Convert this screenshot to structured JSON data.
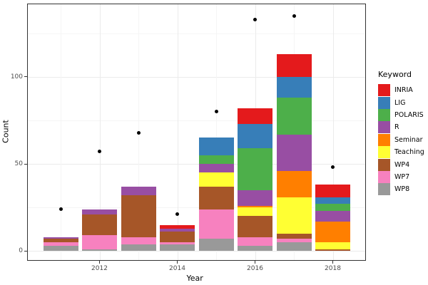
{
  "chart_data": {
    "type": "bar",
    "stacked": true,
    "title": "",
    "xlabel": "Year",
    "ylabel": "Count",
    "grid": true,
    "legend_title": "Keyword",
    "legend_position": "right",
    "x_years": [
      2011,
      2012,
      2013,
      2014,
      2015,
      2016,
      2017,
      2018
    ],
    "x_tick_labels": [
      "2012",
      "2014",
      "2016",
      "2018"
    ],
    "x_tick_years": [
      2012,
      2014,
      2016,
      2018
    ],
    "x_minor_years": [
      2011,
      2013,
      2015,
      2017
    ],
    "y_tick_labels": [
      "0",
      "50",
      "100"
    ],
    "y_ticks": [
      0,
      50,
      100
    ],
    "y_minor_ticks": [
      25,
      75,
      125
    ],
    "ylim": [
      -5,
      142
    ],
    "stack_order_bottom_to_top": [
      "WP8",
      "WP7",
      "WP4",
      "Teaching",
      "Seminar",
      "R",
      "POLARIS",
      "LIG",
      "INRIA"
    ],
    "series": [
      {
        "name": "INRIA",
        "color": "#E41A1C",
        "values": [
          0,
          0,
          0,
          2,
          0,
          9,
          13,
          7
        ]
      },
      {
        "name": "LIG",
        "color": "#377EB8",
        "values": [
          0,
          0,
          0,
          0,
          10,
          14,
          12,
          4
        ]
      },
      {
        "name": "POLARIS",
        "color": "#4DAF4A",
        "values": [
          0,
          0,
          0,
          0,
          5,
          24,
          21,
          4
        ]
      },
      {
        "name": "R",
        "color": "#984EA3",
        "values": [
          1,
          3,
          5,
          2,
          5,
          9,
          21,
          6
        ]
      },
      {
        "name": "Seminar",
        "color": "#FF7F00",
        "values": [
          0,
          0,
          0,
          0,
          0,
          1,
          15,
          12
        ]
      },
      {
        "name": "Teaching",
        "color": "#FFFF33",
        "values": [
          0,
          0,
          0,
          0,
          8,
          5,
          21,
          4
        ]
      },
      {
        "name": "WP4",
        "color": "#A65628",
        "values": [
          2,
          12,
          24,
          6,
          13,
          12,
          3,
          1
        ]
      },
      {
        "name": "WP7",
        "color": "#F781BF",
        "values": [
          2,
          8,
          4,
          1,
          17,
          5,
          2,
          0
        ]
      },
      {
        "name": "WP8",
        "color": "#999999",
        "values": [
          3,
          1,
          4,
          4,
          7,
          3,
          5,
          0
        ]
      }
    ],
    "bar_totals": [
      8,
      24,
      37,
      15,
      65,
      82,
      113,
      38
    ],
    "points": {
      "name": "yearly-dots",
      "color": "#000000",
      "values": [
        24,
        57,
        68,
        21,
        80,
        133,
        135,
        48
      ]
    },
    "colors": {
      "panel_border": "#333333",
      "grid_major": "#ebebeb",
      "grid_minor": "#f5f5f5",
      "tick_text": "#4d4d4d",
      "point": "#000000"
    }
  }
}
